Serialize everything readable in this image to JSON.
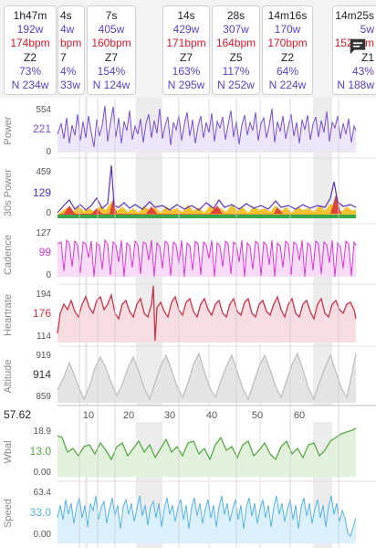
{
  "laps": [
    {
      "dur": "1h47m",
      "power": "192w",
      "hr": "174bpm",
      "zone": "Z2",
      "pct": "73%",
      "np": "N 234w"
    },
    {
      "dur": "4s",
      "power": "4w",
      "hr": "bpm",
      "zone": "7",
      "pct": "4%",
      "np": "33w"
    },
    {
      "dur": "7s",
      "power": "405w",
      "hr": "160bpm",
      "zone": "Z7",
      "pct": "154%",
      "np": "N 124w"
    },
    {
      "dur": "14s",
      "power": "429w",
      "hr": "171bpm",
      "zone": "Z7",
      "pct": "163%",
      "np": "N 295w"
    },
    {
      "dur": "28s",
      "power": "307w",
      "hr": "164bpm",
      "zone": "Z5",
      "pct": "117%",
      "np": "N 252w"
    },
    {
      "dur": "14m16s",
      "power": "170w",
      "hr": "170bpm",
      "zone": "Z2",
      "pct": "64%",
      "np": "N 224w"
    },
    {
      "dur": "14m25s",
      "power": "5w",
      "hr": "152bpm",
      "zone": "Z1",
      "pct": "43%",
      "np": "N 188w"
    }
  ],
  "charts": [
    {
      "id": "power",
      "label": "Power",
      "ticks": [
        "554",
        "221",
        "0"
      ],
      "current": "221",
      "color": "#7a4fd0",
      "fill": "#ece6f8"
    },
    {
      "id": "power30",
      "label": "30s Power",
      "ticks": [
        "459",
        "129",
        "0"
      ],
      "current": "129",
      "color": "#5b2fb8",
      "fill": "#ffffff"
    },
    {
      "id": "cadence",
      "label": "Cadence",
      "ticks": [
        "127",
        "99",
        "0"
      ],
      "current": "99",
      "color": "#d936d9",
      "fill": "#f8dbf7"
    },
    {
      "id": "heartrate",
      "label": "Heartrate",
      "ticks": [
        "194",
        "176",
        "114"
      ],
      "current": "176",
      "color": "#c8344a",
      "fill": "#f7dde1"
    },
    {
      "id": "altitude",
      "label": "Altitude",
      "ticks": [
        "919",
        "914",
        "859"
      ],
      "current": "914",
      "color": "#bdbdbd",
      "fill": "#e4e4e4"
    },
    {
      "id": "wbal",
      "label": "Wbal",
      "ticks": [
        "18.9",
        "13.0",
        "0.00"
      ],
      "current": "13.0",
      "color": "#57a846",
      "fill": "#e2f1dc"
    },
    {
      "id": "speed",
      "label": "Speed",
      "ticks": [
        "63.4",
        "33.0",
        "0.00"
      ],
      "current": "33.0",
      "color": "#58b3e3",
      "fill": "#dcf0fb"
    }
  ],
  "xaxis": {
    "value": "57.62",
    "ticks": [
      "10",
      "20",
      "30",
      "40",
      "50",
      "60"
    ]
  },
  "icons": {
    "chat": "chat-icon"
  }
}
